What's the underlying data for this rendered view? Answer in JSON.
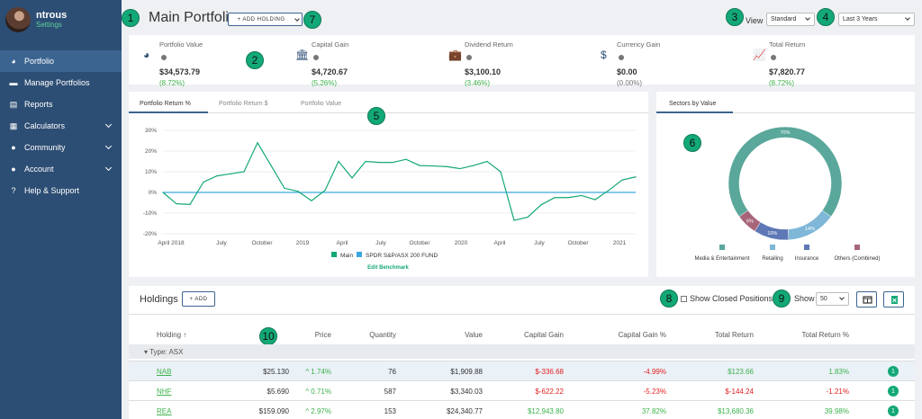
{
  "profile": {
    "name": "ntrous",
    "settings": "Settings"
  },
  "nav": [
    {
      "label": "Portfolio",
      "icon": "pie-chart-icon",
      "glyph": "◕",
      "chev": false
    },
    {
      "label": "Manage Portfolios",
      "icon": "folder-icon",
      "glyph": "▬",
      "chev": false
    },
    {
      "label": "Reports",
      "icon": "document-icon",
      "glyph": "▤",
      "chev": false
    },
    {
      "label": "Calculators",
      "icon": "calculator-icon",
      "glyph": "▦",
      "chev": true
    },
    {
      "label": "Community",
      "icon": "users-icon",
      "glyph": "●",
      "chev": true
    },
    {
      "label": "Account",
      "icon": "user-icon",
      "glyph": "●",
      "chev": true
    },
    {
      "label": "Help & Support",
      "icon": "question-icon",
      "glyph": "?",
      "chev": false
    }
  ],
  "header": {
    "title": "Main Portfolio",
    "add_holding": "+ ADD HOLDING",
    "view_label": "View",
    "view_value": "Standard",
    "period_value": "Last 3 Years"
  },
  "badges": [
    "1",
    "2",
    "3",
    "4",
    "5",
    "6",
    "7",
    "8",
    "9",
    "10"
  ],
  "summary": [
    {
      "label": "Portfolio Value",
      "value": "$34,573.79",
      "pct": "(8.72%)",
      "tone": "green",
      "icon": "pie-chart-icon",
      "glyph": "◕"
    },
    {
      "label": "Capital Gain",
      "value": "$4,720.67",
      "pct": "(5.26%)",
      "tone": "green",
      "icon": "bank-icon",
      "glyph": "🏛"
    },
    {
      "label": "Dividend Return",
      "value": "$3,100.10",
      "pct": "(3.46%)",
      "tone": "green",
      "icon": "briefcase-icon",
      "glyph": "💼"
    },
    {
      "label": "Currency Gain",
      "value": "$0.00",
      "pct": "(0.00%)",
      "tone": "gray",
      "icon": "dollar-icon",
      "glyph": "$"
    },
    {
      "label": "Total Return",
      "value": "$7,820.77",
      "pct": "(8.72%)",
      "tone": "green",
      "icon": "line-chart-icon",
      "glyph": "📈"
    }
  ],
  "chart_tabs": [
    "Portfolio Return %",
    "Portfolio Return $",
    "Portfolio Value"
  ],
  "chart_data": [
    {
      "type": "line",
      "title": "",
      "xlabel": "",
      "ylabel": "",
      "x_ticks": [
        "April 2018",
        "July",
        "October",
        "2019",
        "April",
        "July",
        "October",
        "2020",
        "April",
        "July",
        "October",
        "2021"
      ],
      "y_ticks": [
        "30%",
        "20%",
        "10%",
        "0%",
        "-10%",
        "-20%"
      ],
      "ylim": [
        -20,
        30
      ],
      "series": [
        {
          "name": "Main",
          "color": "#13a877",
          "x": [
            0,
            1,
            2,
            3,
            4,
            5,
            6,
            7,
            8,
            9,
            10,
            11,
            12,
            13,
            14,
            15,
            16,
            17,
            18,
            19,
            20,
            21,
            22,
            23,
            24,
            25,
            26,
            27,
            28,
            29,
            30,
            31,
            32,
            33,
            34,
            35
          ],
          "values": [
            0,
            -5.5,
            -5.8,
            5,
            8,
            9,
            10,
            24,
            13,
            2,
            0.5,
            -4,
            1,
            15,
            7,
            15,
            14.5,
            14.5,
            16,
            13,
            12.8,
            12.5,
            11.5,
            13,
            15,
            10,
            -13.5,
            -12,
            -6,
            -2.5,
            -2.5,
            -1.5,
            -3.5,
            1,
            6,
            7.5
          ]
        },
        {
          "name": "SPDR S&P/ASX 200 FUND",
          "color": "#3aa7e0",
          "x": [
            0,
            35
          ],
          "values": [
            0,
            0
          ]
        }
      ],
      "grid": true,
      "legend": "bottom",
      "legend_link": "Edit Benchmark"
    },
    {
      "type": "pie",
      "title": "Sectors by Value",
      "categories": [
        "Media & Entertainment",
        "Retailing",
        "Insurance",
        "Others (Combined)"
      ],
      "values": [
        70,
        14,
        10,
        6
      ],
      "labels": [
        "70%",
        "14%",
        "10%",
        "6%"
      ],
      "colors": [
        "#5aa79b",
        "#7fb7d8",
        "#5d78b5",
        "#a8657a"
      ],
      "legend": "bottom"
    }
  ],
  "sector_tab": "Sectors by Value",
  "holdings": {
    "title": "Holdings",
    "add": "+ ADD",
    "show_closed": "Show Closed Positions",
    "show_label": "Show",
    "show_value": "50",
    "columns": [
      "Holding ↑",
      "Price",
      "Quantity",
      "Value",
      "Capital Gain",
      "Capital Gain %",
      "Total Return",
      "Total Return %"
    ],
    "group": "▾  Type: ASX",
    "rows": [
      {
        "code": "NAB",
        "price": "$25.130",
        "chg": "^ 1.74%",
        "qty": "76",
        "value": "$1,909.88",
        "cg": "$-336.68",
        "cgp": "-4.99%",
        "tr": "$123.66",
        "trp": "1.83%",
        "n": "1",
        "cgTone": "red",
        "trTone": "green"
      },
      {
        "code": "NHF",
        "price": "$5.690",
        "chg": "^ 0.71%",
        "qty": "587",
        "value": "$3,340.03",
        "cg": "$-622.22",
        "cgp": "-5.23%",
        "tr": "$-144.24",
        "trp": "-1.21%",
        "n": "1",
        "cgTone": "red",
        "trTone": "red"
      },
      {
        "code": "REA",
        "price": "$159.090",
        "chg": "^ 2.97%",
        "qty": "153",
        "value": "$24,340.77",
        "cg": "$12,943.80",
        "cgp": "37.82%",
        "tr": "$13,680.36",
        "trp": "39.98%",
        "n": "1",
        "cgTone": "green",
        "trTone": "green"
      }
    ]
  }
}
